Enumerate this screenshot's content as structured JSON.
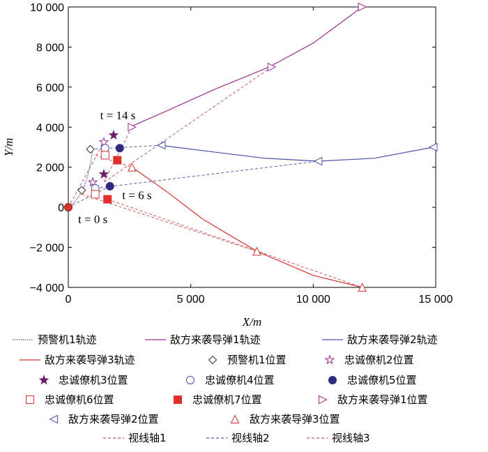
{
  "chart_data": {
    "type": "line",
    "title": "",
    "xlabel": "X/m",
    "ylabel": "Y/m",
    "xlim": [
      0,
      15000
    ],
    "ylim": [
      -4000,
      10000
    ],
    "xticks": [
      0,
      5000,
      10000,
      15000
    ],
    "xtick_labels": [
      "0",
      "5 000",
      "10 000",
      "15 000"
    ],
    "yticks": [
      -4000,
      -2000,
      0,
      2000,
      4000,
      6000,
      8000,
      10000
    ],
    "ytick_labels": [
      "−4 000",
      "−2 000",
      "0",
      "2 000",
      "4 000",
      "6 000",
      "8 000",
      "10 000"
    ],
    "grid": false,
    "legend_placement": "bottom",
    "colors": {
      "black": "#000000",
      "purple": "#9b2f8f",
      "blue": "#4a52a4",
      "red": "#d6332e",
      "dark_purple": "#6b1f66",
      "navy": "#2e2a7e"
    },
    "series": [
      {
        "name": "预警机1轨迹",
        "kind": "line",
        "color": "#555555",
        "dash": "dot",
        "x": [
          0,
          150,
          350,
          600,
          800,
          920,
          1000
        ],
        "y": [
          0,
          150,
          400,
          850,
          1600,
          2300,
          2900
        ]
      },
      {
        "name": "敌方来袭导弹1轨迹",
        "kind": "line",
        "color": "#9b2f8f",
        "x": [
          2500,
          4000,
          6000,
          8200,
          10000,
          12000
        ],
        "y": [
          4000,
          4800,
          5900,
          7000,
          8200,
          10000
        ]
      },
      {
        "name": "敌方来袭导弹2轨迹",
        "kind": "line",
        "color": "#4a52a4",
        "x": [
          3700,
          6000,
          8000,
          10200,
          12500,
          14900
        ],
        "y": [
          3100,
          2750,
          2450,
          2300,
          2450,
          3000
        ]
      },
      {
        "name": "敌方来袭导弹3轨迹",
        "kind": "line",
        "color": "#d6332e",
        "x": [
          2600,
          4000,
          5500,
          7700,
          10000,
          12000
        ],
        "y": [
          2000,
          800,
          -600,
          -2200,
          -3400,
          -4000
        ]
      },
      {
        "name": "预警机1位置",
        "kind": "marker",
        "marker": "diamond",
        "color": "#333333",
        "x": [
          0,
          550,
          900
        ],
        "y": [
          0,
          850,
          2900
        ]
      },
      {
        "name": "忠诚僚机2位置",
        "kind": "marker",
        "marker": "star-open",
        "color": "#9b2f8f",
        "x": [
          1000,
          1450
        ],
        "y": [
          1250,
          3250
        ]
      },
      {
        "name": "忠诚僚机3位置",
        "kind": "marker",
        "marker": "star",
        "color": "#6b1f66",
        "x": [
          1450,
          1850
        ],
        "y": [
          1650,
          3600
        ]
      },
      {
        "name": "忠诚僚机4位置",
        "kind": "marker",
        "marker": "circle-open",
        "color": "#4a52a4",
        "x": [
          1100,
          1500
        ],
        "y": [
          950,
          2950
        ]
      },
      {
        "name": "忠诚僚机5位置",
        "kind": "marker",
        "marker": "circle",
        "color": "#2e2a7e",
        "x": [
          1700,
          2100
        ],
        "y": [
          1050,
          2950
        ]
      },
      {
        "name": "忠诚僚机6位置",
        "kind": "marker",
        "marker": "square-open",
        "color": "#d6332e",
        "x": [
          1100,
          1500
        ],
        "y": [
          650,
          2600
        ]
      },
      {
        "name": "忠诚僚机7位置",
        "kind": "marker",
        "marker": "square",
        "color": "#e0302a",
        "x": [
          1600,
          2000
        ],
        "y": [
          400,
          2350
        ]
      },
      {
        "name": "敌方来袭导弹1位置",
        "kind": "marker",
        "marker": "tri-right",
        "color": "#9b2f8f",
        "x": [
          2600,
          8300,
          12000
        ],
        "y": [
          4000,
          7000,
          10000
        ]
      },
      {
        "name": "敌方来袭导弹2位置",
        "kind": "marker",
        "marker": "tri-left",
        "color": "#4a52a4",
        "x": [
          3800,
          10200,
          14900
        ],
        "y": [
          3100,
          2300,
          3000
        ]
      },
      {
        "name": "敌方来袭导弹3位置",
        "kind": "marker",
        "marker": "tri-up",
        "color": "#d6332e",
        "x": [
          2600,
          7700,
          12000
        ],
        "y": [
          2000,
          -2200,
          -4000
        ]
      },
      {
        "name": "视线轴1",
        "kind": "line",
        "color": "#c2508f",
        "dash": "dash",
        "x": [
          0,
          1450,
          2600,
          1450,
          8300,
          1450,
          12000
        ],
        "y": [
          0,
          3250,
          4000,
          1250,
          7000,
          1250,
          10000
        ]
      },
      {
        "name": "视线轴2",
        "kind": "line",
        "color": "#5c5ca8",
        "dash": "dash",
        "x": [
          900,
          3800,
          1100,
          10200,
          0,
          1700
        ],
        "y": [
          2900,
          3100,
          950,
          2300,
          0,
          1050
        ]
      },
      {
        "name": "视线轴3",
        "kind": "line",
        "color": "#d65a5a",
        "dash": "dash",
        "x": [
          1100,
          2600,
          550,
          7700,
          1600,
          12000
        ],
        "y": [
          2600,
          2000,
          650,
          -2200,
          400,
          -4000
        ]
      }
    ],
    "annotations": [
      {
        "text": "t = 14 s",
        "x": 1300,
        "y": 4400
      },
      {
        "text": "t = 6 s",
        "x": 2200,
        "y": 400
      },
      {
        "text": "t = 0 s",
        "x": 400,
        "y": -800
      }
    ],
    "start_point": {
      "x": 0,
      "y": 0,
      "color": "#d6332e"
    }
  },
  "legend": {
    "rows": [
      [
        "预警机1轨迹",
        "敌方来袭导弹1轨迹",
        "敌方来袭导弹2轨迹"
      ],
      [
        "敌方来袭导弹3轨迹",
        "预警机1位置",
        "忠诚僚机2位置"
      ],
      [
        "忠诚僚机3位置",
        "忠诚僚机4位置",
        "忠诚僚机5位置"
      ],
      [
        "忠诚僚机6位置",
        "忠诚僚机7位置",
        "敌方来袭导弹1位置"
      ],
      [
        "敌方来袭导弹2位置",
        "敌方来袭导弹3位置"
      ],
      [
        "视线轴1",
        "视线轴2",
        "视线轴3"
      ]
    ]
  }
}
